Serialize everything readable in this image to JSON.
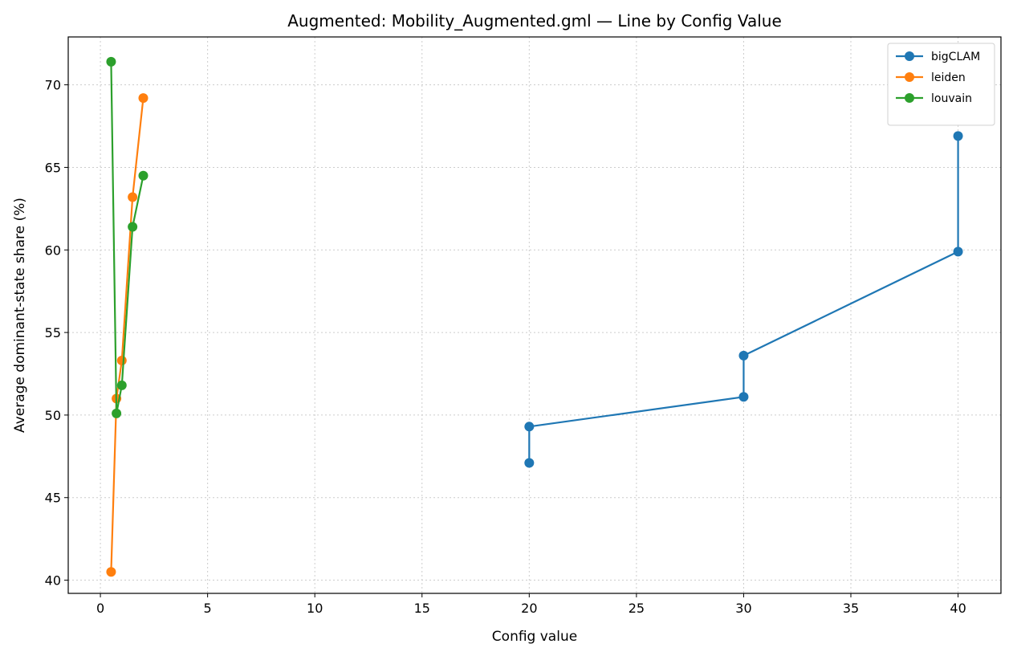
{
  "chart_data": {
    "type": "line",
    "title": "Augmented: Mobility_Augmented.gml — Line by Config Value",
    "xlabel": "Config value",
    "ylabel": "Average dominant-state share (%)",
    "xlim": [
      -1.5,
      42
    ],
    "ylim": [
      39.2,
      72.9
    ],
    "xticks": [
      0,
      5,
      10,
      15,
      20,
      25,
      30,
      35,
      40
    ],
    "yticks": [
      40,
      45,
      50,
      55,
      60,
      65,
      70
    ],
    "grid": true,
    "legend_position": "top-right",
    "series": [
      {
        "name": "bigCLAM",
        "color": "#1f77b4",
        "points": [
          [
            20,
            47.1
          ],
          [
            20,
            49.3
          ],
          [
            30,
            51.1
          ],
          [
            30,
            53.6
          ],
          [
            40,
            59.9
          ],
          [
            40,
            66.9
          ]
        ]
      },
      {
        "name": "leiden",
        "color": "#ff7f0e",
        "points": [
          [
            0.5,
            40.5
          ],
          [
            0.75,
            51.0
          ],
          [
            1.0,
            53.3
          ],
          [
            1.5,
            63.2
          ],
          [
            2.0,
            69.2
          ]
        ]
      },
      {
        "name": "louvain",
        "color": "#2ca02c",
        "points": [
          [
            0.5,
            71.4
          ],
          [
            0.75,
            50.1
          ],
          [
            1.0,
            51.8
          ],
          [
            1.5,
            61.4
          ],
          [
            2.0,
            64.5
          ]
        ]
      }
    ]
  }
}
